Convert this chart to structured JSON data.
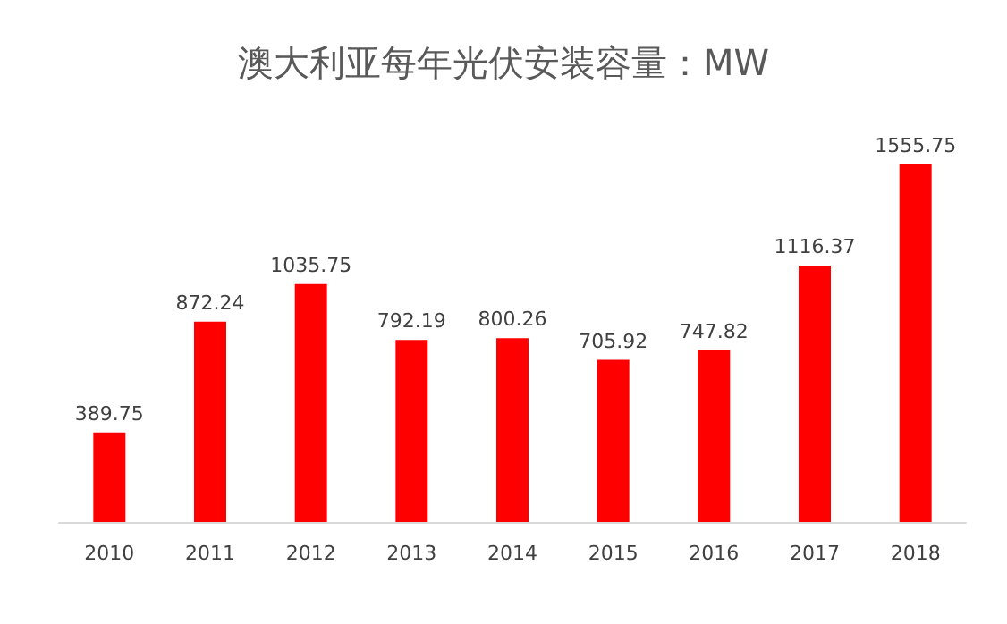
{
  "chart_data": {
    "type": "bar",
    "title": "澳大利亚每年光伏安装容量：MW",
    "categories": [
      "2010",
      "2011",
      "2012",
      "2013",
      "2014",
      "2015",
      "2016",
      "2017",
      "2018"
    ],
    "values": [
      389.75,
      872.24,
      1035.75,
      792.19,
      800.26,
      705.92,
      747.82,
      1116.37,
      1555.75
    ],
    "color": "#ff0000",
    "data_labels": true,
    "tick_labels": "x",
    "grid": false
  }
}
